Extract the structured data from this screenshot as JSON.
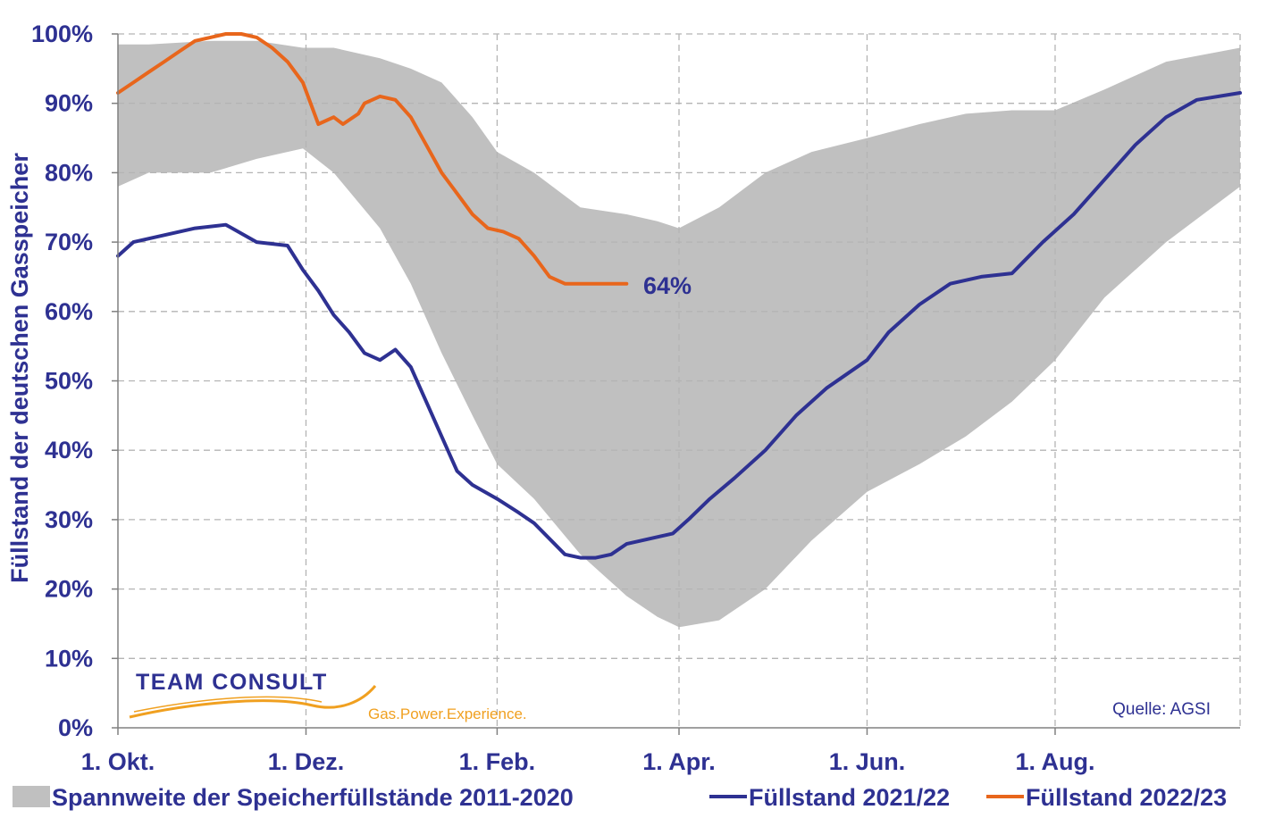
{
  "chart_data": {
    "type": "area",
    "ylabel": "Füllstand der deutschen Gasspeicher",
    "yticks": [
      "0%",
      "10%",
      "20%",
      "30%",
      "40%",
      "50%",
      "60%",
      "70%",
      "80%",
      "90%",
      "100%"
    ],
    "ylim": [
      0,
      100
    ],
    "xticks": [
      "1. Okt.",
      "1. Dez.",
      "1. Feb.",
      "1. Apr.",
      "1. Jun.",
      "1. Aug."
    ],
    "xtick_days": [
      0,
      61,
      123,
      182,
      243,
      304
    ],
    "xlim_days": [
      0,
      364
    ],
    "grid": true,
    "source": "Quelle: AGSI",
    "annotation": "64%",
    "legend": {
      "placement": "bottom",
      "band": "Spannweite der Speicherfüllstände 2011-2020",
      "line2122": "Füllstand 2021/22",
      "line2223": "Füllstand 2022/23"
    },
    "colors": {
      "band": "#c0c0c0",
      "line2122": "#2e3192",
      "line2223": "#e8661c",
      "text": "#2e3192"
    },
    "series": [
      {
        "name": "Spannweite der Speicherfüllstände 2011-2020",
        "kind": "band",
        "x_days": [
          0,
          10,
          30,
          45,
          60,
          70,
          85,
          95,
          105,
          115,
          123,
          135,
          150,
          165,
          175,
          182,
          195,
          210,
          225,
          243,
          260,
          275,
          290,
          304,
          320,
          340,
          364
        ],
        "upper": [
          98.5,
          98.5,
          99,
          99,
          98,
          98,
          96.5,
          95,
          93,
          88,
          83,
          80,
          75,
          74,
          73,
          72,
          75,
          80,
          83,
          85,
          87,
          88.5,
          89,
          89,
          92,
          96,
          98
        ],
        "lower": [
          78,
          80,
          80,
          82,
          83.5,
          80,
          72,
          64,
          54,
          45,
          38,
          33,
          25,
          19,
          16,
          14.5,
          15.5,
          20,
          27,
          34,
          38,
          42,
          47,
          53,
          62,
          70,
          78
        ]
      },
      {
        "name": "Füllstand 2021/22",
        "kind": "line",
        "x_days": [
          0,
          5,
          15,
          25,
          35,
          45,
          55,
          60,
          65,
          70,
          75,
          80,
          85,
          90,
          95,
          100,
          105,
          110,
          115,
          123,
          130,
          135,
          145,
          150,
          155,
          160,
          165,
          170,
          175,
          180,
          185,
          192,
          200,
          210,
          220,
          230,
          243,
          250,
          260,
          270,
          280,
          290,
          300,
          310,
          320,
          330,
          340,
          350,
          364
        ],
        "values": [
          68,
          70,
          71,
          72,
          72.5,
          70,
          69.5,
          66,
          63,
          59.5,
          57,
          54,
          53,
          54.5,
          52,
          47,
          42,
          37,
          35,
          33,
          31,
          29.5,
          25,
          24.5,
          24.5,
          25,
          26.5,
          27,
          27.5,
          28,
          30,
          33,
          36,
          40,
          45,
          49,
          53,
          57,
          61,
          64,
          65,
          65.5,
          70,
          74,
          79,
          84,
          88,
          90.5,
          91.5
        ]
      },
      {
        "name": "Füllstand 2022/23",
        "kind": "line",
        "x_days": [
          0,
          5,
          10,
          15,
          20,
          25,
          30,
          35,
          40,
          45,
          50,
          55,
          60,
          65,
          70,
          73,
          78,
          80,
          85,
          90,
          95,
          100,
          105,
          110,
          115,
          120,
          125,
          130,
          135,
          140,
          145,
          150,
          155,
          160,
          165
        ],
        "values": [
          91.5,
          93,
          94.5,
          96,
          97.5,
          99,
          99.5,
          100,
          100,
          99.5,
          98,
          96,
          93,
          87,
          88,
          87,
          88.5,
          90,
          91,
          90.5,
          88,
          84,
          80,
          77,
          74,
          72,
          71.5,
          70.5,
          68,
          65,
          64,
          64,
          64,
          64,
          64
        ]
      }
    ]
  },
  "logo": {
    "name": "TEAM CONSULT",
    "tagline": "Gas.Power.Experience."
  }
}
